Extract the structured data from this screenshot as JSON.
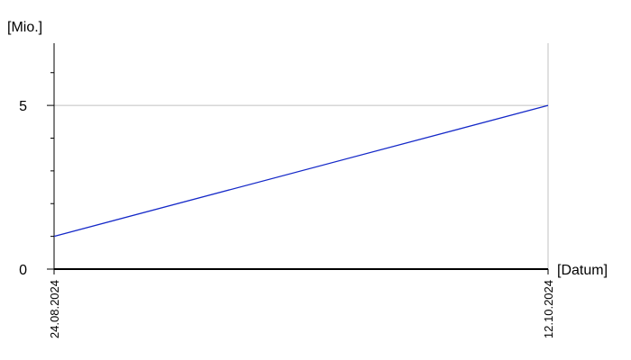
{
  "chart_data": {
    "type": "line",
    "x": [
      "24.08.2024",
      "12.10.2024"
    ],
    "series": [
      {
        "values": [
          1.0,
          5.0
        ]
      }
    ],
    "ylabel": "[Mio.]",
    "xlabel": "[Datum]",
    "ylim": [
      0,
      6.9
    ],
    "y_ticks": [
      "0",
      "5"
    ],
    "grid": true,
    "colors": {
      "line": "#1428c8",
      "grid": "#c0c0c0",
      "axis": "#000000"
    }
  }
}
